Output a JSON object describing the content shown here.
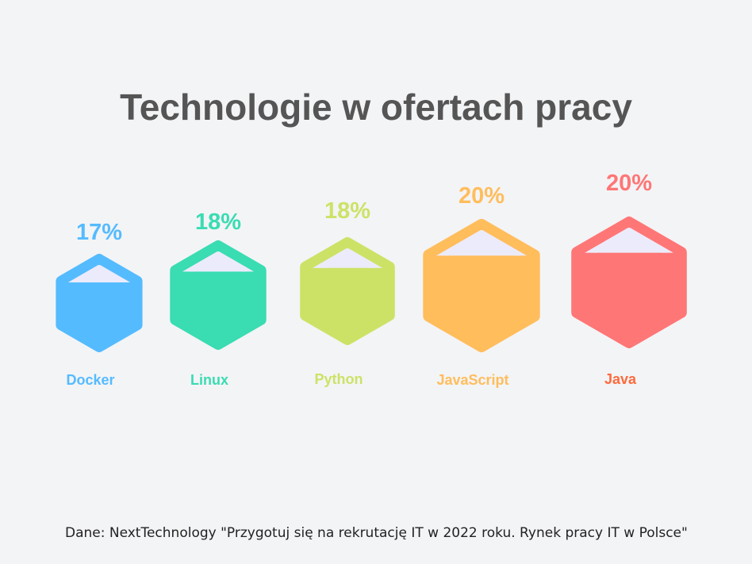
{
  "chart_data": {
    "type": "bar",
    "title": "Technologie w ofertach pracy",
    "categories": [
      "Docker",
      "Linux",
      "Python",
      "JavaScript",
      "Java"
    ],
    "values": [
      17,
      18,
      18,
      20,
      20
    ],
    "value_labels": [
      "17%",
      "18%",
      "18%",
      "20%",
      "20%"
    ],
    "colors": [
      "#55bbff",
      "#3adcb2",
      "#cce266",
      "#ffbd5c",
      "#ff7676"
    ],
    "label_colors": [
      "#55bbff",
      "#3adcb2",
      "#cce266",
      "#ffbd5c",
      "#ff6a3d"
    ],
    "xlabel": "",
    "ylabel": "",
    "unit": "%"
  },
  "source": "Dane: NextTechnology \"Przygotuj się na rekrutację IT w 2022 roku. Rynek pracy IT w Polsce\""
}
